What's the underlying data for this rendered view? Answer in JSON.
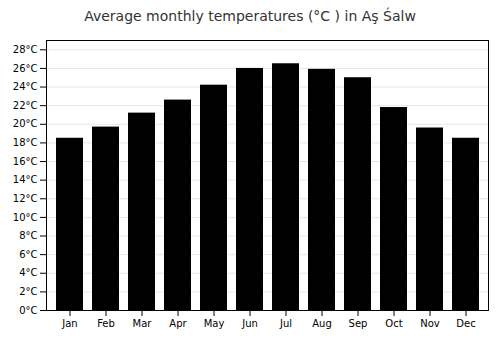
{
  "chart_data": {
    "type": "bar",
    "title": "Average monthly temperatures (°C ) in Aş Śalw",
    "categories": [
      "Jan",
      "Feb",
      "Mar",
      "Apr",
      "May",
      "Jun",
      "Jul",
      "Aug",
      "Sep",
      "Oct",
      "Nov",
      "Dec"
    ],
    "values": [
      18.5,
      19.7,
      21.2,
      22.6,
      24.2,
      26.0,
      26.5,
      25.9,
      25.0,
      21.8,
      19.6,
      18.5
    ],
    "ylim": [
      0,
      29
    ],
    "yticks": [
      {
        "value": 0,
        "label": "0°C"
      },
      {
        "value": 2,
        "label": "2°C"
      },
      {
        "value": 4,
        "label": "4°C"
      },
      {
        "value": 6,
        "label": "6°C"
      },
      {
        "value": 8,
        "label": "8°C"
      },
      {
        "value": 10,
        "label": "10°C"
      },
      {
        "value": 12,
        "label": "12°C"
      },
      {
        "value": 14,
        "label": "14°C"
      },
      {
        "value": 16,
        "label": "16°C"
      },
      {
        "value": 18,
        "label": "18°C"
      },
      {
        "value": 20,
        "label": "20°C"
      },
      {
        "value": 22,
        "label": "22°C"
      },
      {
        "value": 24,
        "label": "24°C"
      },
      {
        "value": 26,
        "label": "26°C"
      },
      {
        "value": 28,
        "label": "28°C"
      }
    ],
    "grid": true
  }
}
